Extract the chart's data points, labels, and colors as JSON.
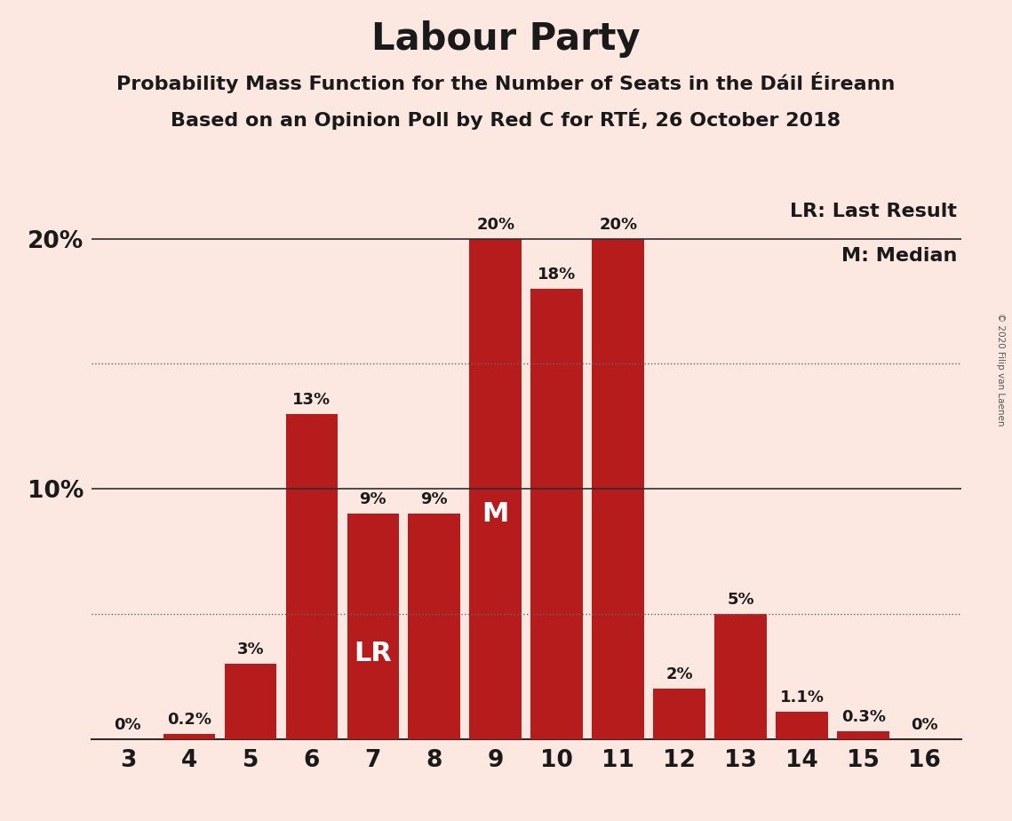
{
  "title": "Labour Party",
  "subtitle1": "Probability Mass Function for the Number of Seats in the Dáil Éireann",
  "subtitle2": "Based on an Opinion Poll by Red C for RTÉ, 26 October 2018",
  "copyright": "© 2020 Filip van Laenen",
  "categories": [
    3,
    4,
    5,
    6,
    7,
    8,
    9,
    10,
    11,
    12,
    13,
    14,
    15,
    16
  ],
  "values": [
    0.0,
    0.2,
    3.0,
    13.0,
    9.0,
    9.0,
    20.0,
    18.0,
    20.0,
    2.0,
    5.0,
    1.1,
    0.3,
    0.0
  ],
  "labels": [
    "0%",
    "0.2%",
    "3%",
    "13%",
    "9%",
    "9%",
    "20%",
    "18%",
    "20%",
    "2%",
    "5%",
    "1.1%",
    "0.3%",
    "0%"
  ],
  "bar_color": "#b71c1c",
  "background_color": "#fce8e0",
  "text_color": "#1a1a1a",
  "ylim": [
    0,
    22
  ],
  "lr_seat": 7,
  "median_seat": 9,
  "legend_lr": "LR: Last Result",
  "legend_m": "M: Median",
  "lr_label": "LR",
  "m_label": "M",
  "label_fontsize": 13,
  "title_fontsize": 30,
  "subtitle_fontsize": 16,
  "tick_fontsize": 19,
  "legend_fontsize": 16,
  "bar_width": 0.85
}
